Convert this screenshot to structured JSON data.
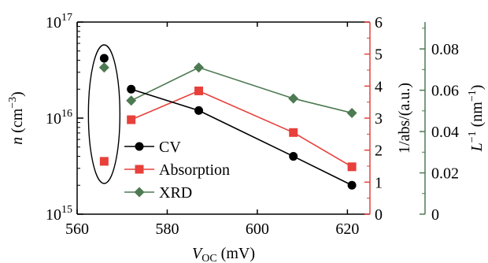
{
  "chart_data": {
    "type": "scatter",
    "x_axis": {
      "label_italic": "V",
      "label_sub": "OC",
      "label_rest": " (mV)",
      "range": [
        560,
        625
      ],
      "ticks": [
        560,
        580,
        600,
        620
      ],
      "tick_labels": [
        "560",
        "580",
        "600",
        "620"
      ]
    },
    "y_left": {
      "label_italic": "n",
      "label_rest": " (cm",
      "label_sup": "−3",
      "label_close": ")",
      "scale": "log",
      "range": [
        1000000000000000.0,
        1e+17
      ],
      "ticks": [
        {
          "base": "10",
          "exp": "15"
        },
        {
          "base": "10",
          "exp": "16"
        },
        {
          "base": "10",
          "exp": "17"
        }
      ],
      "color": "#000000"
    },
    "y_right1": {
      "label": "1/abs/(a.u.)",
      "range": [
        0,
        6
      ],
      "ticks": [
        0,
        1,
        2,
        3,
        4,
        5,
        6
      ],
      "tick_labels": [
        "0",
        "1",
        "2",
        "3",
        "4",
        "5",
        "6"
      ],
      "color": "#e8403a"
    },
    "y_right2": {
      "label_italic": "L",
      "label_sup": "−1",
      "label_rest": " (nm",
      "label_sup2": "−1",
      "label_close": ")",
      "range": [
        0,
        0.093
      ],
      "ticks": [
        0,
        0.02,
        0.04,
        0.06,
        0.08
      ],
      "tick_labels": [
        "0",
        "0.02",
        "0.04",
        "0.06",
        "0.08"
      ],
      "color": "#4d7a52"
    },
    "series": [
      {
        "name": "CV",
        "axis": "y_left",
        "marker": "circle",
        "color": "#000000",
        "line_color": "#000000",
        "x": [
          566,
          572,
          587,
          608,
          621
        ],
        "y": [
          4.2e+16,
          2e+16,
          1.2e+16,
          4000000000000000.0,
          2000000000000000.0
        ],
        "connected_from_index": 1
      },
      {
        "name": "Absorption",
        "axis": "y_right1",
        "marker": "square",
        "color": "#e8403a",
        "line_color": "#e8403a",
        "x": [
          566,
          572,
          587,
          608,
          621
        ],
        "y": [
          1.65,
          2.95,
          3.85,
          2.55,
          1.48
        ],
        "connected_from_index": 1
      },
      {
        "name": "XRD",
        "axis": "y_right2",
        "marker": "diamond",
        "color": "#4d7a52",
        "line_color": "#4d7a52",
        "x": [
          566,
          572,
          587,
          608,
          621
        ],
        "y": [
          0.071,
          0.055,
          0.071,
          0.056,
          0.049
        ],
        "connected_from_index": 1
      }
    ],
    "annotation": "ellipse around 566 mV points",
    "legend_position": "lower-left"
  }
}
